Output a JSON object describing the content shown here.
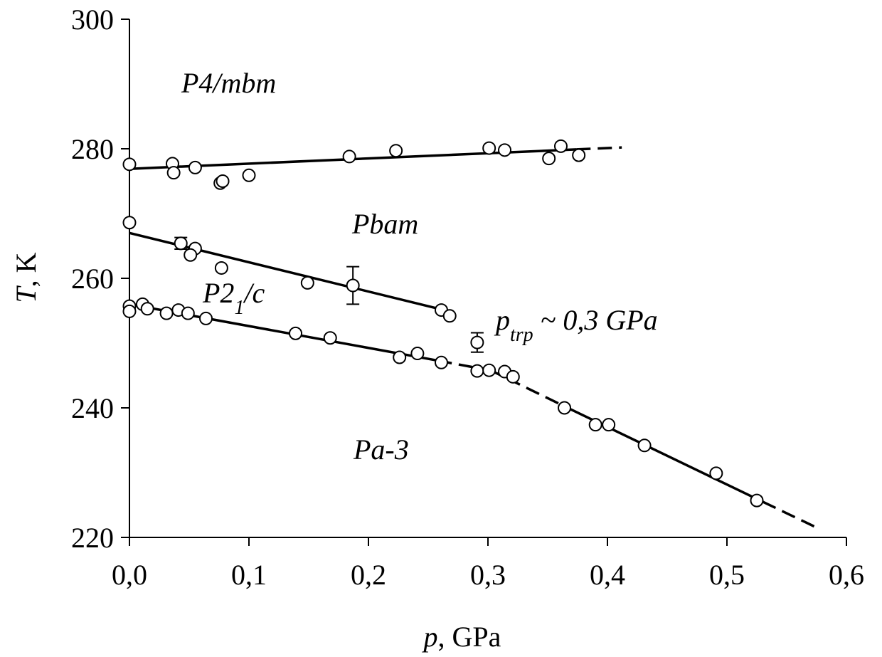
{
  "chart_data": {
    "type": "scatter",
    "xlabel": {
      "parts": [
        {
          "text": "p",
          "italic": true
        },
        {
          "text": ", GPa"
        }
      ]
    },
    "ylabel": {
      "parts": [
        {
          "text": "T",
          "italic": true
        },
        {
          "text": ", K"
        }
      ]
    },
    "xlim": [
      0,
      0.6
    ],
    "ylim": [
      220,
      300
    ],
    "xticks": [
      {
        "value": 0,
        "label": "0,0"
      },
      {
        "value": 0.1,
        "label": "0,1"
      },
      {
        "value": 0.2,
        "label": "0,2"
      },
      {
        "value": 0.3,
        "label": "0,3"
      },
      {
        "value": 0.4,
        "label": "0,4"
      },
      {
        "value": 0.5,
        "label": "0,5"
      },
      {
        "value": 0.6,
        "label": "0,6"
      }
    ],
    "yticks": [
      220,
      240,
      260,
      280,
      300
    ],
    "marker_color": "#ffffff",
    "line_color": "#000000",
    "series": [
      {
        "x": [
          0,
          0.036,
          0.037,
          0.055,
          0.076,
          0.078,
          0.1,
          0.184,
          0.223,
          0.301,
          0.314,
          0.351,
          0.361,
          0.376
        ],
        "y": [
          277.6,
          277.7,
          276.3,
          277.1,
          274.7,
          275.0,
          275.9,
          278.8,
          279.7,
          280.1,
          279.8,
          278.5,
          280.4,
          279.0
        ]
      },
      {
        "x": [
          0,
          0.043,
          0.055,
          0.051,
          0.077,
          0.149,
          0.187,
          0.261,
          0.268
        ],
        "y": [
          268.6,
          265.4,
          264.6,
          263.6,
          261.6,
          259.3,
          258.9,
          255.1,
          254.2
        ],
        "errors": [
          null,
          0.9,
          null,
          null,
          null,
          null,
          2.9,
          null,
          null
        ]
      },
      {
        "x": [
          0,
          0,
          0.011,
          0.015,
          0.031,
          0.041,
          0.049,
          0.064,
          0.139,
          0.168,
          0.226,
          0.241,
          0.261,
          0.291,
          0.301,
          0.314,
          0.321,
          0.364,
          0.39,
          0.401,
          0.431,
          0.491,
          0.525
        ],
        "y": [
          255.7,
          254.9,
          256.0,
          255.3,
          254.6,
          255.1,
          254.6,
          253.8,
          251.5,
          250.8,
          247.8,
          248.4,
          247.0,
          245.7,
          245.8,
          245.6,
          244.8,
          240.0,
          237.4,
          237.4,
          234.2,
          229.9,
          225.7
        ]
      },
      {
        "x": [
          0.291
        ],
        "y": [
          250.1
        ],
        "errors": [
          1.5
        ]
      }
    ],
    "lines": [
      {
        "x": [
          0,
          0.374
        ],
        "y": [
          276.9,
          279.9
        ],
        "dashed": false
      },
      {
        "x": [
          0.374,
          0.412
        ],
        "y": [
          279.9,
          280.2
        ],
        "dashed": true
      },
      {
        "x": [
          0,
          0.261
        ],
        "y": [
          267.0,
          255.2
        ],
        "dashed": false
      },
      {
        "x": [
          0,
          0.258
        ],
        "y": [
          256.0,
          247.3
        ],
        "dashed": false
      },
      {
        "x": [
          0.258,
          0.29
        ],
        "y": [
          247.3,
          246.2
        ],
        "dashed": true
      },
      {
        "x": [
          0.3,
          0.36
        ],
        "y": [
          246.0,
          240.6
        ],
        "dashed": true
      },
      {
        "x": [
          0.36,
          0.53
        ],
        "y": [
          240.6,
          225.5
        ],
        "dashed": false
      },
      {
        "x": [
          0.53,
          0.573
        ],
        "y": [
          225.5,
          221.7
        ],
        "dashed": true
      }
    ],
    "annotations": [
      {
        "parts": [
          {
            "text": "P4/mbm",
            "italic": true
          }
        ]
      },
      {
        "parts": [
          {
            "text": "Pbam",
            "italic": true
          }
        ]
      },
      {
        "parts": [
          {
            "text": "P2",
            "italic": true
          },
          {
            "text": "1",
            "italic": true,
            "sub": true
          },
          {
            "text": "/c",
            "italic": true
          }
        ]
      },
      {
        "parts": [
          {
            "text": "p",
            "italic": true
          },
          {
            "text": "trp",
            "italic": true,
            "sub": true
          },
          {
            "text": " ~ 0,3 GPa",
            "italic": true
          }
        ]
      },
      {
        "parts": [
          {
            "text": "Pa-3",
            "italic": true
          }
        ]
      }
    ]
  }
}
